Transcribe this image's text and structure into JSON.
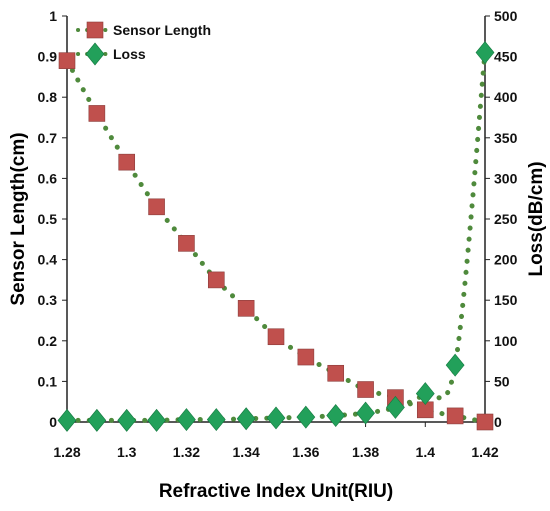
{
  "chart_data": {
    "type": "scatter",
    "title": "",
    "xlabel": "Refractive Index Unit(RIU)",
    "ylabel_left": "Sensor Length(cm)",
    "ylabel_right": "Loss(dB/cm)",
    "xlim": [
      1.28,
      1.42
    ],
    "ylim_left": [
      0,
      1
    ],
    "ylim_right": [
      0,
      500
    ],
    "x_ticks": [
      "1.28",
      "1.3",
      "1.32",
      "1.34",
      "1.36",
      "1.38",
      "1.4",
      "1.42"
    ],
    "y_left_ticks": [
      "0",
      "0.1",
      "0.2",
      "0.3",
      "0.4",
      "0.5",
      "0.6",
      "0.7",
      "0.8",
      "0.9",
      "1"
    ],
    "y_right_ticks": [
      "0",
      "50",
      "100",
      "150",
      "200",
      "250",
      "300",
      "350",
      "400",
      "450",
      "500"
    ],
    "legend_position": "top-left",
    "series": [
      {
        "name": "Sensor Length",
        "axis": "left",
        "marker": "square",
        "marker_color": "#c0504d",
        "line_color": "#4f8a3c",
        "line_style": "dotted",
        "x": [
          1.28,
          1.29,
          1.3,
          1.31,
          1.32,
          1.33,
          1.34,
          1.35,
          1.36,
          1.37,
          1.38,
          1.39,
          1.4,
          1.41,
          1.42
        ],
        "y": [
          0.89,
          0.76,
          0.64,
          0.53,
          0.44,
          0.35,
          0.28,
          0.21,
          0.16,
          0.12,
          0.08,
          0.06,
          0.03,
          0.015,
          0.0
        ]
      },
      {
        "name": "Loss",
        "axis": "right",
        "marker": "diamond",
        "marker_color": "#22a05a",
        "line_color": "#4f8a3c",
        "line_style": "dotted",
        "x": [
          1.28,
          1.29,
          1.3,
          1.31,
          1.32,
          1.33,
          1.34,
          1.35,
          1.36,
          1.37,
          1.38,
          1.39,
          1.4,
          1.41,
          1.42
        ],
        "y": [
          2,
          2,
          2,
          2,
          3,
          3,
          4,
          5,
          6,
          8,
          11,
          18,
          35,
          70,
          455
        ]
      }
    ]
  }
}
